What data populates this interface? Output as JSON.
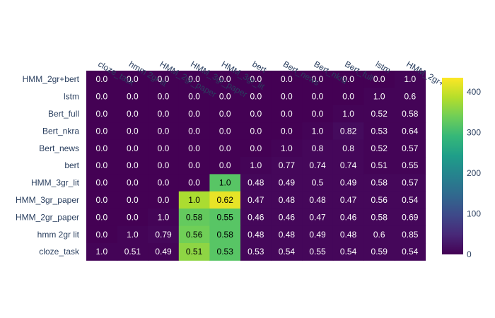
{
  "chart_data": {
    "type": "heatmap",
    "x_categories": [
      "cloze_task",
      "hmm 2gr lit",
      "HMM_2gr_paper",
      "HMM_3gr_paper",
      "HMM_3gr_lit",
      "bert",
      "Bert_news",
      "Bert_nkra",
      "Bert_full",
      "lstm",
      "HMM_2gr+bert"
    ],
    "y_categories": [
      "HMM_2gr+bert",
      "lstm",
      "Bert_full",
      "Bert_nkra",
      "Bert_news",
      "bert",
      "HMM_3gr_lit",
      "HMM_3gr_paper",
      "HMM_2gr_paper",
      "hmm 2gr lit",
      "cloze_task"
    ],
    "annotations": [
      [
        "0.0",
        "0.0",
        "0.0",
        "0.0",
        "0.0",
        "0.0",
        "0.0",
        "0.0",
        "0.0",
        "0.0",
        "1.0"
      ],
      [
        "0.0",
        "0.0",
        "0.0",
        "0.0",
        "0.0",
        "0.0",
        "0.0",
        "0.0",
        "0.0",
        "1.0",
        "0.6"
      ],
      [
        "0.0",
        "0.0",
        "0.0",
        "0.0",
        "0.0",
        "0.0",
        "0.0",
        "0.0",
        "1.0",
        "0.52",
        "0.58"
      ],
      [
        "0.0",
        "0.0",
        "0.0",
        "0.0",
        "0.0",
        "0.0",
        "0.0",
        "1.0",
        "0.82",
        "0.53",
        "0.64"
      ],
      [
        "0.0",
        "0.0",
        "0.0",
        "0.0",
        "0.0",
        "0.0",
        "1.0",
        "0.8",
        "0.8",
        "0.52",
        "0.57"
      ],
      [
        "0.0",
        "0.0",
        "0.0",
        "0.0",
        "0.0",
        "1.0",
        "0.77",
        "0.74",
        "0.74",
        "0.51",
        "0.55"
      ],
      [
        "0.0",
        "0.0",
        "0.0",
        "0.0",
        "1.0",
        "0.48",
        "0.49",
        "0.5",
        "0.49",
        "0.58",
        "0.57"
      ],
      [
        "0.0",
        "0.0",
        "0.0",
        "1.0",
        "0.62",
        "0.47",
        "0.48",
        "0.48",
        "0.47",
        "0.56",
        "0.54"
      ],
      [
        "0.0",
        "0.0",
        "1.0",
        "0.58",
        "0.55",
        "0.46",
        "0.46",
        "0.47",
        "0.46",
        "0.58",
        "0.69"
      ],
      [
        "0.0",
        "1.0",
        "0.79",
        "0.56",
        "0.58",
        "0.48",
        "0.48",
        "0.49",
        "0.48",
        "0.6",
        "0.85"
      ],
      [
        "1.0",
        "0.51",
        "0.49",
        "0.51",
        "0.53",
        "0.53",
        "0.54",
        "0.55",
        "0.54",
        "0.59",
        "0.54"
      ]
    ],
    "color_values": [
      [
        0,
        0,
        0,
        0,
        0,
        0,
        0,
        0,
        0,
        0,
        4
      ],
      [
        0,
        0,
        0,
        0,
        0,
        0,
        0,
        0,
        0,
        4,
        4
      ],
      [
        0,
        0,
        0,
        0,
        0,
        0,
        0,
        0,
        4,
        4,
        4
      ],
      [
        0,
        0,
        0,
        0,
        0,
        0,
        0,
        4,
        12,
        4,
        4
      ],
      [
        0,
        0,
        0,
        0,
        0,
        0,
        4,
        8,
        8,
        4,
        4
      ],
      [
        0,
        0,
        0,
        0,
        0,
        4,
        8,
        8,
        8,
        4,
        4
      ],
      [
        0,
        0,
        0,
        0,
        320,
        8,
        8,
        8,
        8,
        8,
        8
      ],
      [
        0,
        0,
        0,
        380,
        420,
        8,
        8,
        8,
        8,
        8,
        8
      ],
      [
        0,
        0,
        4,
        330,
        320,
        8,
        8,
        8,
        8,
        8,
        8
      ],
      [
        0,
        4,
        8,
        340,
        320,
        8,
        8,
        8,
        8,
        8,
        8
      ],
      [
        4,
        4,
        4,
        360,
        320,
        8,
        8,
        8,
        8,
        8,
        8
      ]
    ],
    "colorscale": "Viridis",
    "zmin": 0,
    "zmax": 435,
    "colorbar_ticks": [
      "0",
      "100",
      "200",
      "300",
      "400"
    ],
    "x_axis_side": "top"
  }
}
